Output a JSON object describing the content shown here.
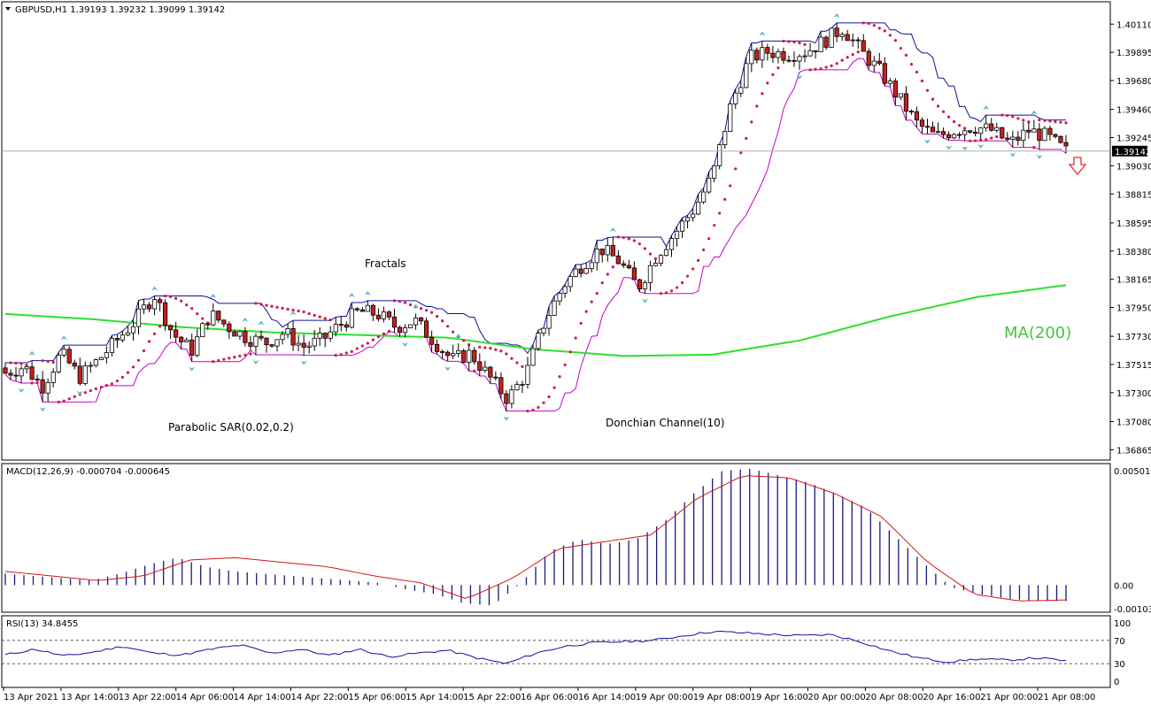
{
  "chart_data": {
    "type": "candlestick",
    "symbol_header": "GBPUSD,H1  1.39193 1.39232 1.39099 1.39142",
    "current_price_label": "1.39142",
    "current_price": 1.39142,
    "y_axis": {
      "ylim": [
        1.368,
        1.4024
      ],
      "ticks": [
        "1.40110",
        "1.39895",
        "1.39680",
        "1.39460",
        "1.39245",
        "1.39030",
        "1.38815",
        "1.38595",
        "1.38380",
        "1.38165",
        "1.37950",
        "1.37730",
        "1.37515",
        "1.37300",
        "1.37080",
        "1.36865"
      ]
    },
    "x_axis": {
      "ticks": [
        "13 Apr 2021",
        "13 Apr 14:00",
        "13 Apr 22:00",
        "14 Apr 06:00",
        "14 Apr 14:00",
        "14 Apr 22:00",
        "15 Apr 06:00",
        "15 Apr 14:00",
        "15 Apr 22:00",
        "16 Apr 06:00",
        "16 Apr 14:00",
        "19 Apr 00:00",
        "19 Apr 08:00",
        "19 Apr 16:00",
        "20 Apr 00:00",
        "20 Apr 08:00",
        "20 Apr 16:00",
        "21 Apr 00:00",
        "21 Apr 08:00"
      ]
    },
    "annotations": {
      "fractals": "Fractals",
      "parabolic_sar": "Parabolic SAR(0.02,0.2)",
      "donchian": "Donchian Channel(10)",
      "ma": "MA(200)"
    },
    "close_anchors": [
      1.3745,
      1.375,
      1.3735,
      1.376,
      1.3742,
      1.3755,
      1.377,
      1.3785,
      1.3805,
      1.3775,
      1.3762,
      1.379,
      1.378,
      1.3772,
      1.3768,
      1.3776,
      1.3765,
      1.377,
      1.3782,
      1.3792,
      1.379,
      1.378,
      1.3785,
      1.377,
      1.3755,
      1.376,
      1.3742,
      1.3725,
      1.3745,
      1.3785,
      1.3812,
      1.3828,
      1.384,
      1.383,
      1.381,
      1.3835,
      1.3852,
      1.387,
      1.3895,
      1.395,
      1.3985,
      1.399,
      1.3988,
      1.399,
      1.3998,
      1.4008,
      1.399,
      1.3975,
      1.3955,
      1.3935,
      1.3925,
      1.393,
      1.3933,
      1.393,
      1.392,
      1.393,
      1.3925,
      1.3914
    ],
    "ma200": [
      [
        0,
        1.379
      ],
      [
        100,
        1.3786
      ],
      [
        200,
        1.378
      ],
      [
        300,
        1.3776
      ],
      [
        400,
        1.3774
      ],
      [
        500,
        1.3772
      ],
      [
        600,
        1.3763
      ],
      [
        700,
        1.3758
      ],
      [
        800,
        1.3759
      ],
      [
        900,
        1.377
      ],
      [
        1000,
        1.3788
      ],
      [
        1100,
        1.3803
      ],
      [
        1200,
        1.3812
      ]
    ],
    "macd": {
      "label": "MACD(12,26,9) -0.000704 -0.000645",
      "ticks": [
        "0.005014",
        "0.00",
        "-0.001035"
      ],
      "ylim": [
        -0.001035,
        0.005014
      ],
      "hist_anchors": [
        0.0005,
        0.0004,
        0.0003,
        0.0002,
        0.0005,
        0.0009,
        0.0012,
        0.0008,
        0.0006,
        0.0005,
        0.0004,
        0.0003,
        0.0002,
        0.0001,
        -0.0002,
        -0.0004,
        -0.0008,
        -0.0009,
        0.0001,
        0.0015,
        0.002,
        0.0018,
        0.002,
        0.0028,
        0.004,
        0.005,
        0.0051,
        0.0048,
        0.0045,
        0.004,
        0.0034,
        0.0022,
        0.001,
        -0.0001,
        -0.0004,
        -0.0006,
        -0.0007,
        -0.0007
      ],
      "signal_anchors": [
        0.0006,
        0.0004,
        0.0002,
        0.0004,
        0.0011,
        0.0012,
        0.001,
        0.0008,
        0.0004,
        0.0001,
        -0.0006,
        0.0003,
        0.0016,
        0.0019,
        0.0022,
        0.0038,
        0.0048,
        0.0047,
        0.004,
        0.003,
        0.001,
        -0.0004,
        -0.0007,
        -0.00065
      ]
    },
    "rsi": {
      "label": "RSI(13) 34.8455",
      "ticks": [
        "100",
        "70",
        "30",
        "0"
      ],
      "levels": [
        70,
        30
      ],
      "anchors": [
        45,
        55,
        43,
        50,
        60,
        48,
        45,
        55,
        62,
        48,
        55,
        44,
        55,
        42,
        48,
        53,
        40,
        30,
        48,
        60,
        66,
        68,
        70,
        78,
        85,
        83,
        80,
        78,
        80,
        68,
        52,
        40,
        33,
        38,
        36,
        40,
        35
      ]
    }
  }
}
